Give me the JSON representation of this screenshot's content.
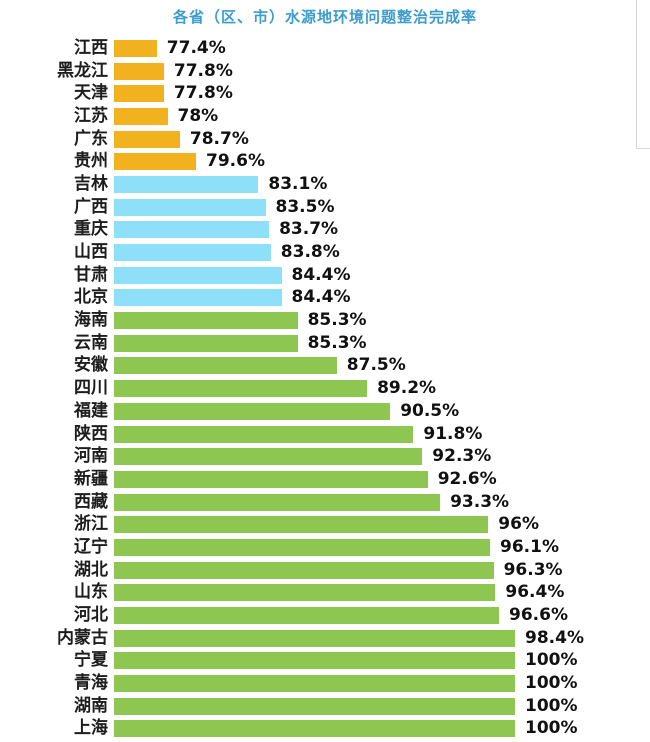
{
  "chart_data": {
    "type": "bar",
    "orientation": "horizontal",
    "title": "各省（区、市）水源地环境问题整治完成率",
    "title_color": "#3b9ccd",
    "xlabel": "",
    "ylabel": "",
    "axis": {
      "min": 75,
      "full_at": 97.5,
      "max_label": 100,
      "unit": "%"
    },
    "legend": null,
    "grid": false,
    "group_colors": {
      "low": "#f2b11e",
      "mid": "#8ee0f8",
      "high": "#8dc751"
    },
    "items": [
      {
        "province": "江西",
        "value": 77.4,
        "label": "77.4%",
        "group": "low"
      },
      {
        "province": "黑龙江",
        "value": 77.8,
        "label": "77.8%",
        "group": "low"
      },
      {
        "province": "天津",
        "value": 77.8,
        "label": "77.8%",
        "group": "low"
      },
      {
        "province": "江苏",
        "value": 78,
        "label": "78%",
        "group": "low"
      },
      {
        "province": "广东",
        "value": 78.7,
        "label": "78.7%",
        "group": "low"
      },
      {
        "province": "贵州",
        "value": 79.6,
        "label": "79.6%",
        "group": "low"
      },
      {
        "province": "吉林",
        "value": 83.1,
        "label": "83.1%",
        "group": "mid"
      },
      {
        "province": "广西",
        "value": 83.5,
        "label": "83.5%",
        "group": "mid"
      },
      {
        "province": "重庆",
        "value": 83.7,
        "label": "83.7%",
        "group": "mid"
      },
      {
        "province": "山西",
        "value": 83.8,
        "label": "83.8%",
        "group": "mid"
      },
      {
        "province": "甘肃",
        "value": 84.4,
        "label": "84.4%",
        "group": "mid"
      },
      {
        "province": "北京",
        "value": 84.4,
        "label": "84.4%",
        "group": "mid"
      },
      {
        "province": "海南",
        "value": 85.3,
        "label": "85.3%",
        "group": "high"
      },
      {
        "province": "云南",
        "value": 85.3,
        "label": "85.3%",
        "group": "high"
      },
      {
        "province": "安徽",
        "value": 87.5,
        "label": "87.5%",
        "group": "high"
      },
      {
        "province": "四川",
        "value": 89.2,
        "label": "89.2%",
        "group": "high"
      },
      {
        "province": "福建",
        "value": 90.5,
        "label": "90.5%",
        "group": "high"
      },
      {
        "province": "陕西",
        "value": 91.8,
        "label": "91.8%",
        "group": "high"
      },
      {
        "province": "河南",
        "value": 92.3,
        "label": "92.3%",
        "group": "high"
      },
      {
        "province": "新疆",
        "value": 92.6,
        "label": "92.6%",
        "group": "high"
      },
      {
        "province": "西藏",
        "value": 93.3,
        "label": "93.3%",
        "group": "high"
      },
      {
        "province": "浙江",
        "value": 96,
        "label": "96%",
        "group": "high"
      },
      {
        "province": "辽宁",
        "value": 96.1,
        "label": "96.1%",
        "group": "high"
      },
      {
        "province": "湖北",
        "value": 96.3,
        "label": "96.3%",
        "group": "high"
      },
      {
        "province": "山东",
        "value": 96.4,
        "label": "96.4%",
        "group": "high"
      },
      {
        "province": "河北",
        "value": 96.6,
        "label": "96.6%",
        "group": "high"
      },
      {
        "province": "内蒙古",
        "value": 98.4,
        "label": "98.4%",
        "group": "high"
      },
      {
        "province": "宁夏",
        "value": 100,
        "label": "100%",
        "group": "high"
      },
      {
        "province": "青海",
        "value": 100,
        "label": "100%",
        "group": "high"
      },
      {
        "province": "湖南",
        "value": 100,
        "label": "100%",
        "group": "high"
      },
      {
        "province": "上海",
        "value": 100,
        "label": "100%",
        "group": "high"
      }
    ]
  }
}
